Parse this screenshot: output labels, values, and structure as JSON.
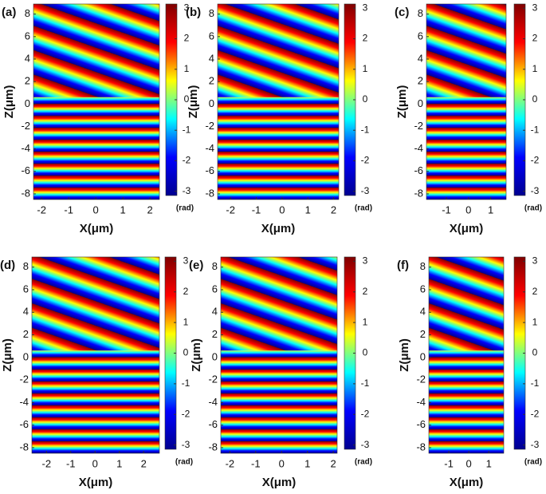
{
  "chart_data": [
    {
      "type": "phasemap",
      "panel_label": "(a)",
      "x_label": "X(μm)",
      "y_label": "Z(μm)",
      "colorbar_label": "(rad)",
      "colormap": "jet",
      "xlim": [
        -2.3,
        2.35
      ],
      "ylim": [
        -8.5,
        8.9
      ],
      "xticks": [
        -2,
        -1,
        0,
        1,
        2
      ],
      "yticks": [
        -8,
        -6,
        -4,
        -2,
        0,
        2,
        4,
        6,
        8
      ],
      "clim": [
        -3.14,
        3.14
      ],
      "cticks": [
        -3,
        -2,
        -1,
        0,
        1,
        2,
        3
      ]
    },
    {
      "type": "phasemap",
      "panel_label": "(b)",
      "x_label": "X(μm)",
      "y_label": "Z(μm)",
      "colorbar_label": "(rad)",
      "colormap": "jet",
      "xlim": [
        -2.5,
        2.2
      ],
      "ylim": [
        -8.5,
        8.9
      ],
      "xticks": [
        -2,
        -1,
        0,
        1,
        2
      ],
      "yticks": [
        -8,
        -6,
        -4,
        -2,
        0,
        2,
        4,
        6,
        8
      ],
      "clim": [
        -3.14,
        3.14
      ],
      "cticks": [
        -3,
        -2,
        -1,
        0,
        1,
        2,
        3
      ]
    },
    {
      "type": "phasemap",
      "panel_label": "(c)",
      "x_label": "X(μm)",
      "y_label": "Z(μm)",
      "colorbar_label": "(rad)",
      "colormap": "jet",
      "xlim": [
        -1.9,
        1.7
      ],
      "ylim": [
        -8.5,
        8.9
      ],
      "xticks": [
        -1,
        0,
        1
      ],
      "yticks": [
        -8,
        -6,
        -4,
        -2,
        0,
        2,
        4,
        6,
        8
      ],
      "clim": [
        -3.14,
        3.14
      ],
      "cticks": [
        -3,
        -2,
        -1,
        0,
        1,
        2,
        3
      ]
    },
    {
      "type": "phasemap",
      "panel_label": "(d)",
      "x_label": "X(μm)",
      "y_label": "Z(μm)",
      "colorbar_label": "(rad)",
      "colormap": "jet",
      "xlim": [
        -2.6,
        2.65
      ],
      "ylim": [
        -8.5,
        8.9
      ],
      "xticks": [
        -2,
        -1,
        0,
        1,
        2
      ],
      "yticks": [
        -8,
        -6,
        -4,
        -2,
        0,
        2,
        4,
        6,
        8
      ],
      "clim": [
        -3.14,
        3.14
      ],
      "cticks": [
        -3,
        -2,
        -1,
        0,
        1,
        2,
        3
      ]
    },
    {
      "type": "phasemap",
      "panel_label": "(e)",
      "x_label": "X(μm)",
      "y_label": "Z(μm)",
      "colorbar_label": "(rad)",
      "colormap": "jet",
      "xlim": [
        -2.35,
        2.15
      ],
      "ylim": [
        -8.5,
        8.9
      ],
      "xticks": [
        -2,
        -1,
        0,
        1,
        2
      ],
      "yticks": [
        -8,
        -6,
        -4,
        -2,
        0,
        2,
        4,
        6,
        8
      ],
      "clim": [
        -3.14,
        3.14
      ],
      "cticks": [
        -3,
        -2,
        -1,
        0,
        1,
        2,
        3
      ]
    },
    {
      "type": "phasemap",
      "panel_label": "(f)",
      "x_label": "X(μm)",
      "y_label": "Z(μm)",
      "colorbar_label": "(rad)",
      "colormap": "jet",
      "xlim": [
        -2.0,
        1.75
      ],
      "ylim": [
        -8.5,
        8.9
      ],
      "xticks": [
        -1,
        0,
        1
      ],
      "yticks": [
        -8,
        -6,
        -4,
        -2,
        0,
        2,
        4,
        6,
        8
      ],
      "clim": [
        -3.14,
        3.14
      ],
      "cticks": [
        -3,
        -2,
        -1,
        0,
        1,
        2,
        3
      ]
    }
  ]
}
